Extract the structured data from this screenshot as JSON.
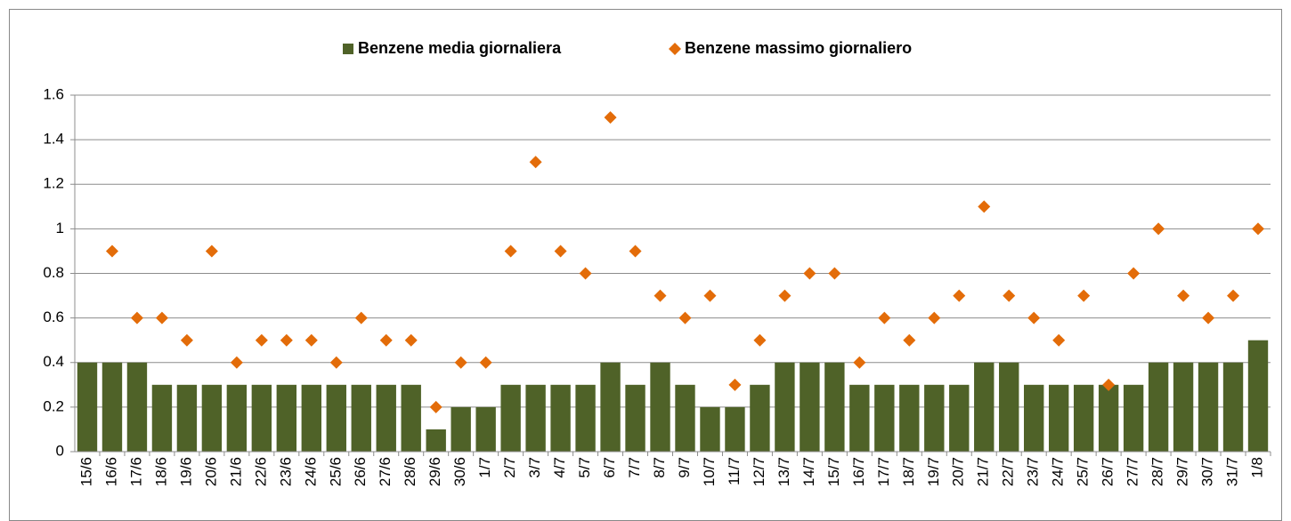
{
  "chart_data": {
    "type": "bar",
    "categories": [
      "15/6",
      "16/6",
      "17/6",
      "18/6",
      "19/6",
      "20/6",
      "21/6",
      "22/6",
      "23/6",
      "24/6",
      "25/6",
      "26/6",
      "27/6",
      "28/6",
      "29/6",
      "30/6",
      "1/7",
      "2/7",
      "3/7",
      "4/7",
      "5/7",
      "6/7",
      "7/7",
      "8/7",
      "9/7",
      "10/7",
      "11/7",
      "12/7",
      "13/7",
      "14/7",
      "15/7",
      "16/7",
      "17/7",
      "18/7",
      "19/7",
      "20/7",
      "21/7",
      "22/7",
      "23/7",
      "24/7",
      "25/7",
      "26/7",
      "27/7",
      "28/7",
      "29/7",
      "30/7",
      "31/7",
      "1/8"
    ],
    "series": [
      {
        "name": "Benzene media giornaliera",
        "type": "bar",
        "color": "#4f6228",
        "values": [
          0.4,
          0.4,
          0.4,
          0.3,
          0.3,
          0.3,
          0.3,
          0.3,
          0.3,
          0.3,
          0.3,
          0.3,
          0.3,
          0.3,
          0.1,
          0.2,
          0.2,
          0.3,
          0.3,
          0.3,
          0.3,
          0.4,
          0.3,
          0.4,
          0.3,
          0.2,
          0.2,
          0.3,
          0.4,
          0.4,
          0.4,
          0.3,
          0.3,
          0.3,
          0.3,
          0.3,
          0.4,
          0.4,
          0.3,
          0.3,
          0.3,
          0.3,
          0.3,
          0.4,
          0.4,
          0.4,
          0.4,
          0.5
        ]
      },
      {
        "name": "Benzene massimo giornaliero",
        "type": "scatter",
        "color": "#e36c09",
        "values": [
          null,
          0.9,
          0.6,
          0.6,
          0.5,
          0.9,
          0.4,
          0.5,
          0.5,
          0.5,
          0.4,
          0.6,
          0.5,
          0.5,
          0.2,
          0.4,
          0.4,
          0.9,
          1.3,
          0.9,
          0.8,
          1.5,
          0.9,
          0.7,
          0.6,
          0.7,
          0.3,
          0.5,
          0.7,
          0.8,
          0.8,
          0.4,
          0.6,
          0.5,
          0.6,
          0.7,
          1.1,
          0.7,
          0.6,
          0.5,
          0.7,
          0.3,
          0.8,
          1.0,
          0.7,
          0.6,
          0.7,
          1.0
        ]
      }
    ],
    "ylim": [
      0,
      1.6
    ],
    "yticks": [
      0,
      0.2,
      0.4,
      0.6,
      0.8,
      1,
      1.2,
      1.4,
      1.6
    ],
    "grid": true,
    "legend": "top"
  }
}
